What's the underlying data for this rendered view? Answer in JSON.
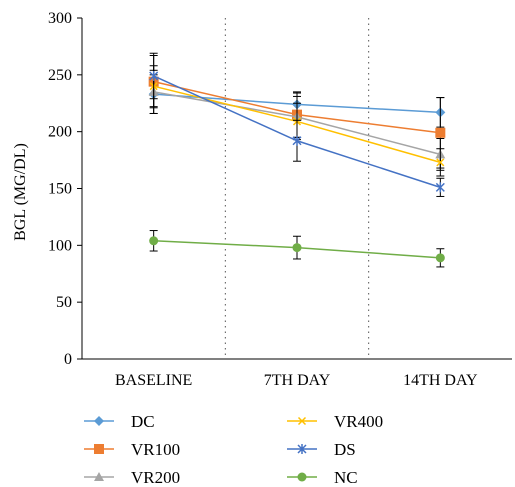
{
  "chart_data": {
    "type": "line",
    "title": "",
    "xlabel": "",
    "ylabel": "BGL (MG/DL)",
    "ylim": [
      0,
      300
    ],
    "yticks": [
      0,
      50,
      100,
      150,
      200,
      250,
      300
    ],
    "categories": [
      "BASELINE",
      "7TH DAY",
      "14TH DAY"
    ],
    "grid": false,
    "category_separators": "dotted",
    "legend_position": "bottom",
    "series": [
      {
        "name": "DC",
        "values": [
          233,
          224,
          217
        ],
        "errors": [
          17,
          10,
          13
        ],
        "color": "#5B9BD5",
        "marker": "diamond"
      },
      {
        "name": "VR100",
        "values": [
          244,
          215,
          199
        ],
        "errors": [
          23,
          20,
          31
        ],
        "color": "#ED7D31",
        "marker": "square"
      },
      {
        "name": "VR200",
        "values": [
          235,
          213,
          180
        ],
        "errors": [
          19,
          18,
          14
        ],
        "color": "#A5A5A5",
        "marker": "triangle"
      },
      {
        "name": "VR400",
        "values": [
          240,
          209,
          173
        ],
        "errors": [
          18,
          16,
          12
        ],
        "color": "#FFC000",
        "marker": "x"
      },
      {
        "name": "DS",
        "values": [
          249,
          192,
          151
        ],
        "errors": [
          20,
          18,
          8
        ],
        "color": "#4472C4",
        "marker": "star"
      },
      {
        "name": "NC",
        "values": [
          104,
          98,
          89
        ],
        "errors": [
          9,
          10,
          8
        ],
        "color": "#70AD47",
        "marker": "circle"
      }
    ]
  }
}
